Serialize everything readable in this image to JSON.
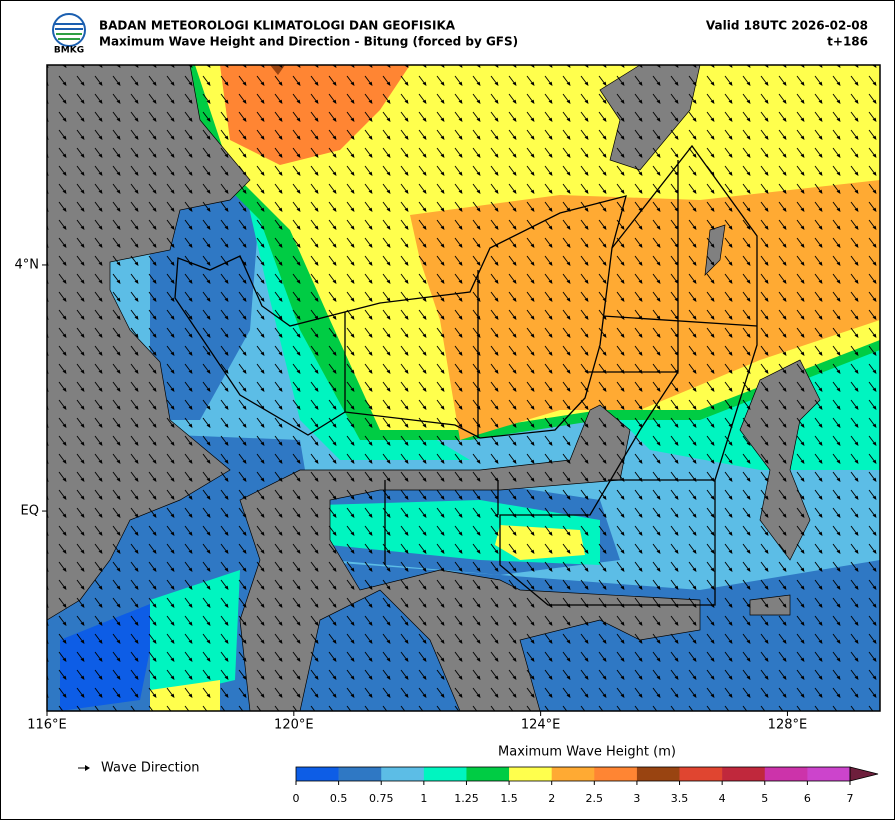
{
  "header": {
    "agency": "BADAN METEOROLOGI KLIMATOLOGI DAN GEOFISIKA",
    "product": "Maximum Wave Height and Direction - Bitung (forced by GFS)",
    "valid": "Valid 18UTC 2026-02-08",
    "lead": "t+186",
    "logo_text": "BMKG"
  },
  "map": {
    "xlim": [
      116,
      129.5
    ],
    "ylim": [
      -3.25,
      7.25
    ],
    "xticks": [
      {
        "value": 116,
        "label": "116°E"
      },
      {
        "value": 120,
        "label": "120°E"
      },
      {
        "value": 124,
        "label": "124°E"
      },
      {
        "value": 128,
        "label": "128°E"
      }
    ],
    "yticks": [
      {
        "value": 0,
        "label": "EQ"
      },
      {
        "value": 4,
        "label": "4°N"
      }
    ]
  },
  "legend": {
    "label": "Wave Direction"
  },
  "colorbar": {
    "title": "Maximum Wave Height (m)",
    "ticks": [
      0,
      0.5,
      0.75,
      1,
      1.25,
      1.5,
      2,
      2.5,
      3,
      3.5,
      4,
      5,
      6,
      7
    ],
    "colors": [
      "#0d5de6",
      "#2f78c4",
      "#5cbde6",
      "#00f5c0",
      "#00cc44",
      "#ffff4d",
      "#ffaa33",
      "#ff8533",
      "#994411",
      "#e04530",
      "#c0283c",
      "#cc33aa",
      "#cc44cc"
    ],
    "extend_color": "#6e1f3c"
  }
}
